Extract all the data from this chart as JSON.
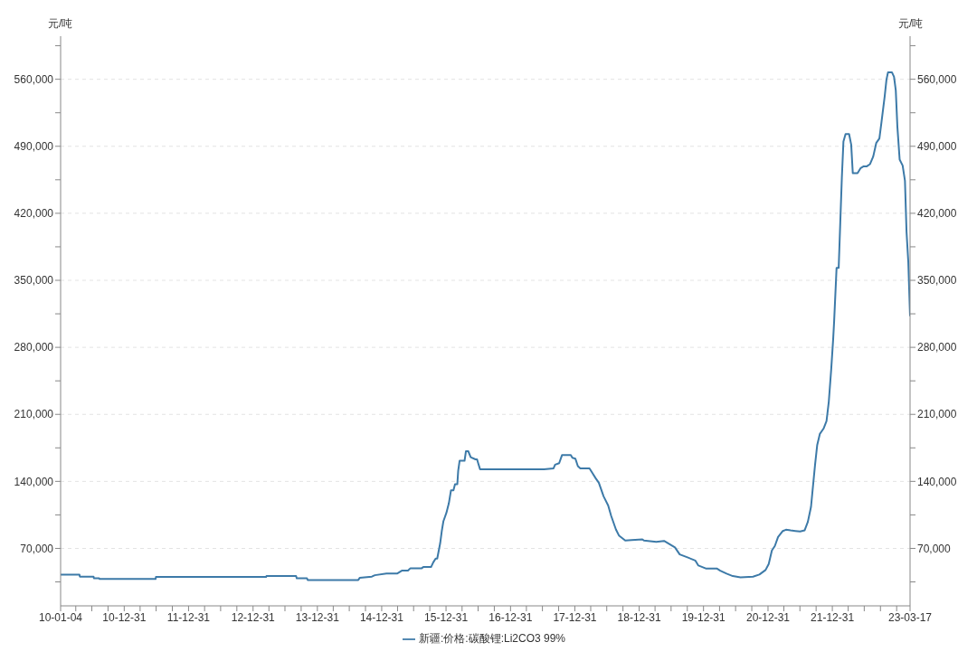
{
  "chart_data": {
    "type": "line",
    "ylabel": "元/吨",
    "y2label": "元/吨",
    "legend": "bottom",
    "grid": "y",
    "xlim": [
      "2010-01-04",
      "2023-03-17"
    ],
    "xticks": [
      {
        "value": "2010-01-04",
        "label": "10-01-04"
      },
      {
        "value": "2010-03-31",
        "label": null
      },
      {
        "value": "2010-06-30",
        "label": null
      },
      {
        "value": "2010-09-30",
        "label": null
      },
      {
        "value": "2010-12-31",
        "label": "10-12-31"
      },
      {
        "value": "2011-03-31",
        "label": null
      },
      {
        "value": "2011-06-30",
        "label": null
      },
      {
        "value": "2011-09-30",
        "label": null
      },
      {
        "value": "2011-12-31",
        "label": "11-12-31"
      },
      {
        "value": "2012-03-31",
        "label": null
      },
      {
        "value": "2012-06-30",
        "label": null
      },
      {
        "value": "2012-09-30",
        "label": null
      },
      {
        "value": "2012-12-31",
        "label": "12-12-31"
      },
      {
        "value": "2013-03-31",
        "label": null
      },
      {
        "value": "2013-06-30",
        "label": null
      },
      {
        "value": "2013-09-30",
        "label": null
      },
      {
        "value": "2013-12-31",
        "label": "13-12-31"
      },
      {
        "value": "2014-03-31",
        "label": null
      },
      {
        "value": "2014-06-30",
        "label": null
      },
      {
        "value": "2014-09-30",
        "label": null
      },
      {
        "value": "2014-12-31",
        "label": "14-12-31"
      },
      {
        "value": "2015-03-31",
        "label": null
      },
      {
        "value": "2015-06-30",
        "label": null
      },
      {
        "value": "2015-09-30",
        "label": null
      },
      {
        "value": "2015-12-31",
        "label": "15-12-31"
      },
      {
        "value": "2016-03-31",
        "label": null
      },
      {
        "value": "2016-06-30",
        "label": null
      },
      {
        "value": "2016-09-30",
        "label": null
      },
      {
        "value": "2016-12-31",
        "label": "16-12-31"
      },
      {
        "value": "2017-03-31",
        "label": null
      },
      {
        "value": "2017-06-30",
        "label": null
      },
      {
        "value": "2017-09-30",
        "label": null
      },
      {
        "value": "2017-12-31",
        "label": "17-12-31"
      },
      {
        "value": "2018-03-31",
        "label": null
      },
      {
        "value": "2018-06-30",
        "label": null
      },
      {
        "value": "2018-09-30",
        "label": null
      },
      {
        "value": "2018-12-31",
        "label": "18-12-31"
      },
      {
        "value": "2019-03-31",
        "label": null
      },
      {
        "value": "2019-06-30",
        "label": null
      },
      {
        "value": "2019-09-30",
        "label": null
      },
      {
        "value": "2019-12-31",
        "label": "19-12-31"
      },
      {
        "value": "2020-03-31",
        "label": null
      },
      {
        "value": "2020-06-30",
        "label": null
      },
      {
        "value": "2020-09-30",
        "label": null
      },
      {
        "value": "2020-12-31",
        "label": "20-12-31"
      },
      {
        "value": "2021-03-31",
        "label": null
      },
      {
        "value": "2021-06-30",
        "label": null
      },
      {
        "value": "2021-09-30",
        "label": null
      },
      {
        "value": "2021-12-31",
        "label": "21-12-31"
      },
      {
        "value": "2022-03-31",
        "label": null
      },
      {
        "value": "2022-06-30",
        "label": null
      },
      {
        "value": "2022-09-30",
        "label": null
      },
      {
        "value": "2022-12-31",
        "label": null
      },
      {
        "value": "2023-03-17",
        "label": "23-03-17"
      }
    ],
    "ylim": [
      10000,
      605000
    ],
    "yticks": [
      {
        "value": 35000,
        "label": null
      },
      {
        "value": 70000,
        "label": "70,000"
      },
      {
        "value": 105000,
        "label": null
      },
      {
        "value": 140000,
        "label": "140,000"
      },
      {
        "value": 175000,
        "label": null
      },
      {
        "value": 210000,
        "label": "210,000"
      },
      {
        "value": 245000,
        "label": null
      },
      {
        "value": 280000,
        "label": "280,000"
      },
      {
        "value": 315000,
        "label": null
      },
      {
        "value": 350000,
        "label": "350,000"
      },
      {
        "value": 385000,
        "label": null
      },
      {
        "value": 420000,
        "label": "420,000"
      },
      {
        "value": 455000,
        "label": null
      },
      {
        "value": 490000,
        "label": "490,000"
      },
      {
        "value": 525000,
        "label": null
      },
      {
        "value": 560000,
        "label": "560,000"
      },
      {
        "value": 595000,
        "label": null
      }
    ],
    "y2lim": [
      10000,
      605000
    ],
    "y2ticks": [
      {
        "value": 35000,
        "label": null
      },
      {
        "value": 70000,
        "label": "70,000"
      },
      {
        "value": 105000,
        "label": null
      },
      {
        "value": 140000,
        "label": "140,000"
      },
      {
        "value": 175000,
        "label": null
      },
      {
        "value": 210000,
        "label": "210,000"
      },
      {
        "value": 245000,
        "label": null
      },
      {
        "value": 280000,
        "label": "280,000"
      },
      {
        "value": 315000,
        "label": null
      },
      {
        "value": 350000,
        "label": "350,000"
      },
      {
        "value": 385000,
        "label": null
      },
      {
        "value": 420000,
        "label": "420,000"
      },
      {
        "value": 455000,
        "label": null
      },
      {
        "value": 490000,
        "label": "490,000"
      },
      {
        "value": 525000,
        "label": null
      },
      {
        "value": 560000,
        "label": "560,000"
      },
      {
        "value": 595000,
        "label": null
      }
    ],
    "series": [
      {
        "name": "新疆:价格:碳酸锂:Li2CO3 99%",
        "color": "#3d7aa8",
        "x": [
          "2010-01-04",
          "2010-04-21",
          "2010-04-23",
          "2010-07-10",
          "2010-07-12",
          "2010-08-11",
          "2010-08-13",
          "2011-06-27",
          "2011-06-29",
          "2013-03-15",
          "2013-03-17",
          "2013-09-01",
          "2013-09-05",
          "2013-11-02",
          "2013-11-06",
          "2014-08-20",
          "2014-08-28",
          "2014-11-05",
          "2014-11-22",
          "2015-01-27",
          "2015-03-28",
          "2015-04-24",
          "2015-05-29",
          "2015-06-12",
          "2015-08-15",
          "2015-08-24",
          "2015-10-07",
          "2015-10-19",
          "2015-11-02",
          "2015-11-11",
          "2015-11-28",
          "2015-12-07",
          "2015-12-16",
          "2016-01-02",
          "2016-01-16",
          "2016-01-28",
          "2016-02-11",
          "2016-02-20",
          "2016-03-04",
          "2016-03-09",
          "2016-03-17",
          "2016-04-14",
          "2016-04-22",
          "2016-05-05",
          "2016-05-19",
          "2016-06-15",
          "2016-06-24",
          "2016-07-02",
          "2016-07-11",
          "2017-07-09",
          "2017-09-01",
          "2017-09-10",
          "2017-10-03",
          "2017-10-19",
          "2017-12-08",
          "2017-12-17",
          "2018-01-03",
          "2018-01-17",
          "2018-01-31",
          "2018-03-24",
          "2018-04-10",
          "2018-04-28",
          "2018-05-16",
          "2018-06-12",
          "2018-07-08",
          "2018-07-25",
          "2018-08-21",
          "2018-09-07",
          "2018-10-13",
          "2018-11-18",
          "2019-01-18",
          "2019-01-27",
          "2019-04-07",
          "2019-05-21",
          "2019-07-22",
          "2019-08-18",
          "2019-10-01",
          "2019-11-14",
          "2019-12-02",
          "2020-01-16",
          "2020-03-17",
          "2020-04-04",
          "2020-05-10",
          "2020-06-14",
          "2020-07-28",
          "2020-10-07",
          "2020-11-12",
          "2020-12-17",
          "2021-01-04",
          "2021-01-22",
          "2021-02-08",
          "2021-02-26",
          "2021-03-25",
          "2021-04-12",
          "2021-05-08",
          "2021-06-04",
          "2021-07-01",
          "2021-07-27",
          "2021-08-14",
          "2021-09-01",
          "2021-09-10",
          "2021-09-24",
          "2021-10-06",
          "2021-10-21",
          "2021-11-11",
          "2021-11-28",
          "2021-12-11",
          "2021-12-25",
          "2022-01-05",
          "2022-01-10",
          "2022-01-24",
          "2022-02-05",
          "2022-02-14",
          "2022-02-23",
          "2022-03-04",
          "2022-03-16",
          "2022-04-05",
          "2022-04-17",
          "2022-04-26",
          "2022-05-23",
          "2022-06-10",
          "2022-06-27",
          "2022-07-15",
          "2022-08-02",
          "2022-08-20",
          "2022-09-06",
          "2022-09-24",
          "2022-10-06",
          "2022-10-24",
          "2022-11-03",
          "2022-11-12",
          "2022-12-04",
          "2022-12-16",
          "2022-12-26",
          "2023-01-04",
          "2023-01-17",
          "2023-02-03",
          "2023-02-16",
          "2023-02-25",
          "2023-03-07",
          "2023-03-17"
        ],
        "values": [
          42700,
          42700,
          40500,
          40500,
          38700,
          38700,
          38000,
          38000,
          40200,
          40200,
          41100,
          41100,
          38700,
          38700,
          37000,
          37000,
          39200,
          40500,
          42000,
          43700,
          43700,
          46800,
          46800,
          49300,
          49300,
          50500,
          50500,
          55200,
          59300,
          59300,
          75600,
          88200,
          98300,
          107100,
          117100,
          130600,
          130600,
          137000,
          137000,
          151100,
          161500,
          161500,
          171500,
          171500,
          165200,
          163000,
          163000,
          158000,
          152700,
          152700,
          153600,
          157400,
          159000,
          167400,
          167400,
          164600,
          163700,
          155900,
          153600,
          153600,
          148600,
          143300,
          138500,
          124400,
          114900,
          104000,
          89800,
          83500,
          78200,
          78800,
          79500,
          78200,
          76900,
          77800,
          71000,
          63700,
          60600,
          57400,
          52100,
          48900,
          48900,
          46800,
          43700,
          41100,
          39800,
          40500,
          42700,
          47400,
          53700,
          67800,
          72600,
          81900,
          88200,
          89500,
          88800,
          88200,
          87600,
          88900,
          97700,
          113400,
          130700,
          157400,
          177800,
          189500,
          195100,
          203000,
          223400,
          258000,
          289400,
          306400,
          363000,
          363000,
          410100,
          457200,
          494900,
          502800,
          502800,
          491800,
          462000,
          462000,
          467300,
          469100,
          469100,
          471400,
          479300,
          493400,
          498100,
          515400,
          542100,
          559400,
          567300,
          567300,
          562600,
          548400,
          510700,
          476100,
          469800,
          454100,
          400700,
          369300,
          312600
        ]
      }
    ]
  }
}
